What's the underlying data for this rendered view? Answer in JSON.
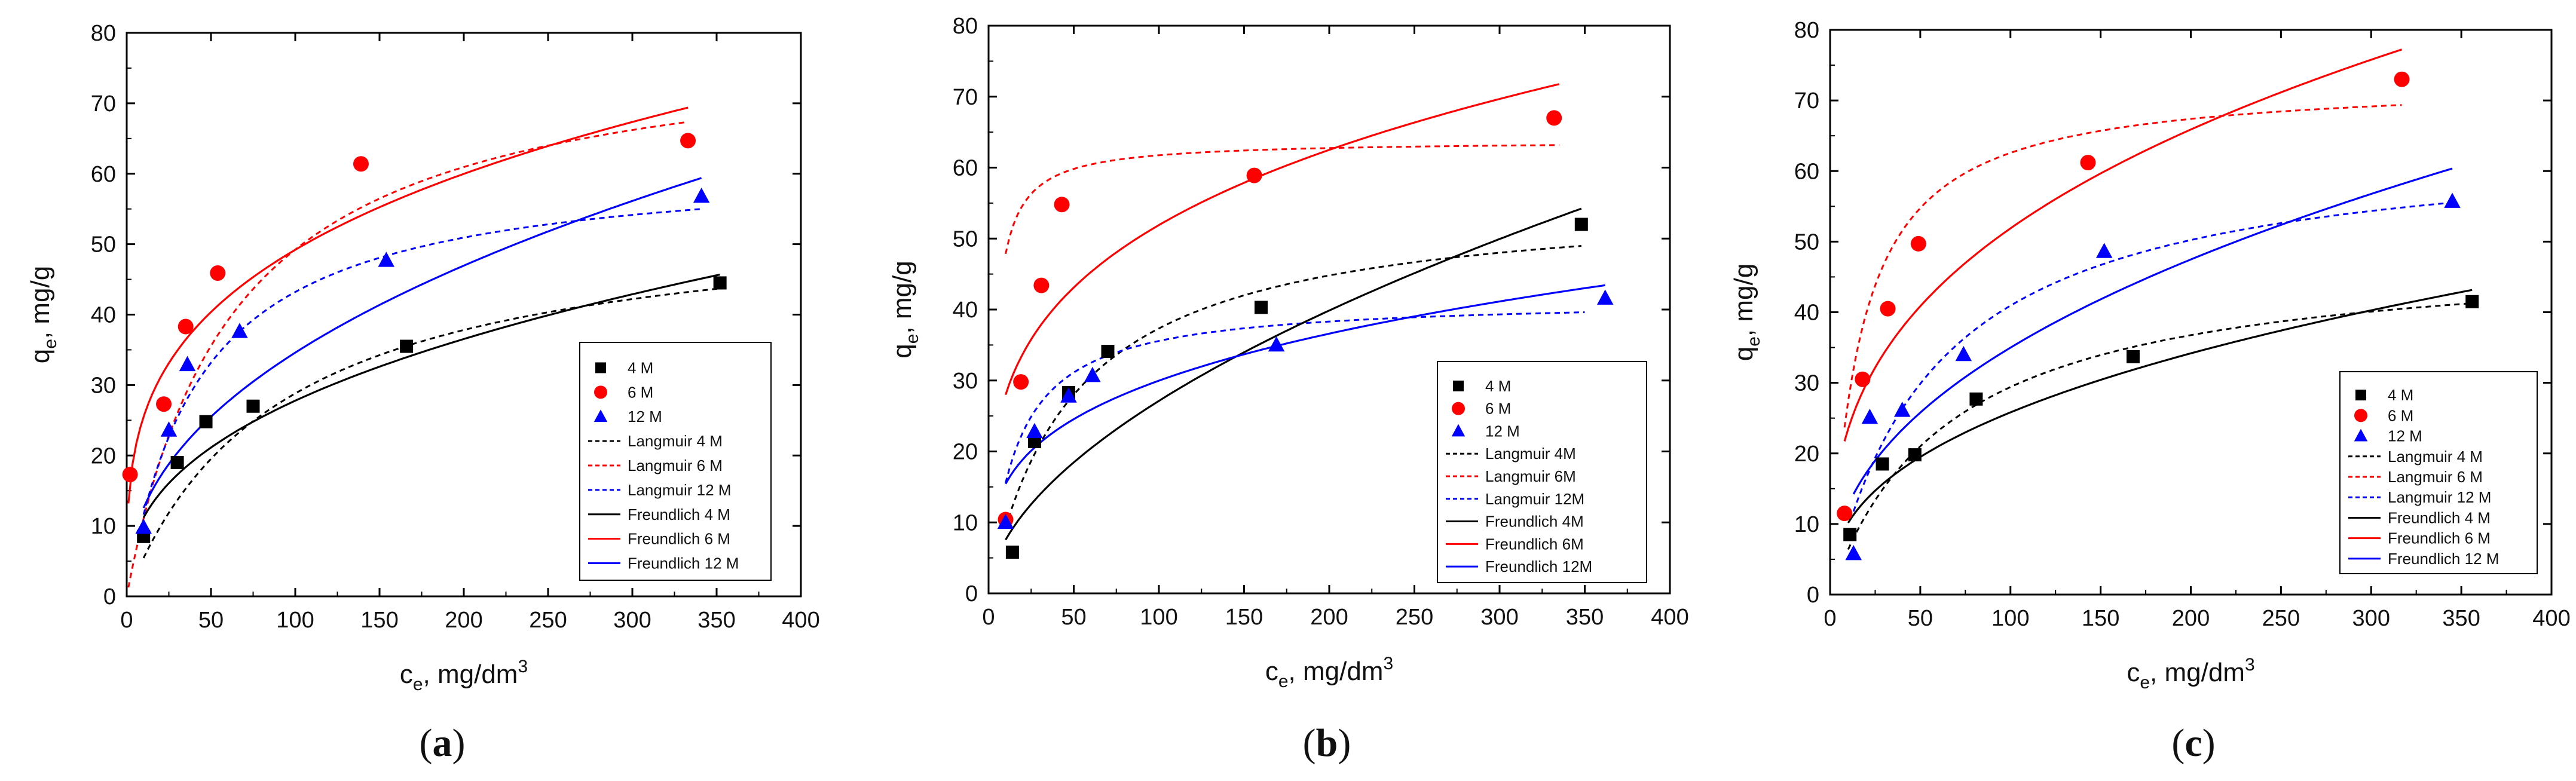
{
  "colors": {
    "s4": "#000000",
    "s6": "#ff0000",
    "s12": "#0000ff"
  },
  "chart_data": [
    {
      "type": "scatter",
      "panel_label": "a",
      "ylabel_main": "q",
      "ylabel_sub": "e",
      "ylabel_unit": ", mg/g",
      "xlabel_main": "c",
      "xlabel_sub": "e",
      "xlabel_unit": ", mg/dm",
      "xlabel_sup": "3",
      "xlim": [
        0,
        400
      ],
      "ylim": [
        0,
        80
      ],
      "xticks": [
        "0",
        "50",
        "100",
        "150",
        "200",
        "250",
        "300",
        "350",
        "400"
      ],
      "yticks": [
        "0",
        "10",
        "20",
        "30",
        "40",
        "50",
        "60",
        "70",
        "80"
      ],
      "legend_position": "right-middle",
      "series": [
        {
          "name": "4 M",
          "marker": "square",
          "color": "#000000",
          "x": [
            10,
            30,
            47,
            75,
            166,
            352
          ],
          "y": [
            8.5,
            19,
            24.8,
            27,
            35.5,
            44.5
          ]
        },
        {
          "name": "6 M",
          "marker": "circle",
          "color": "#ff0000",
          "x": [
            2,
            22,
            35,
            54,
            139,
            333
          ],
          "y": [
            17.3,
            27.3,
            38.3,
            45.9,
            61.4,
            64.7
          ]
        },
        {
          "name": "12 M",
          "marker": "triangle",
          "color": "#0000ff",
          "x": [
            10,
            25,
            36,
            67,
            154,
            341
          ],
          "y": [
            9.8,
            23.6,
            32.9,
            37.6,
            47.7,
            56.8
          ]
        }
      ],
      "fits": [
        {
          "name": "Langmuir 4 M",
          "model": "langmuir",
          "dash": true,
          "color": "#000000",
          "qm": 55,
          "b": 0.011,
          "xmin": 10,
          "xmax": 352
        },
        {
          "name": "Langmuir 6 M",
          "model": "langmuir",
          "dash": true,
          "color": "#ff0000",
          "qm": 80,
          "b": 0.016,
          "xmin": 1,
          "xmax": 333
        },
        {
          "name": "Langmuir 12 M",
          "model": "langmuir",
          "dash": true,
          "color": "#0000ff",
          "qm": 62,
          "b": 0.023,
          "xmin": 10,
          "xmax": 341
        },
        {
          "name": "Freundlich 4 M",
          "model": "freundlich",
          "dash": false,
          "color": "#000000",
          "k": 4.5,
          "n": 2.53,
          "xmin": 10,
          "xmax": 352
        },
        {
          "name": "Freundlich 6 M",
          "model": "freundlich",
          "dash": false,
          "color": "#ff0000",
          "k": 13.2,
          "n": 3.5,
          "xmin": 1,
          "xmax": 333
        },
        {
          "name": "Freundlich 12 M",
          "model": "freundlich",
          "dash": false,
          "color": "#0000ff",
          "k": 4.55,
          "n": 2.27,
          "xmin": 10,
          "xmax": 341
        }
      ]
    },
    {
      "type": "scatter",
      "panel_label": "b",
      "ylabel_main": "q",
      "ylabel_sub": "e",
      "ylabel_unit": ", mg/g",
      "xlabel_main": "c",
      "xlabel_sub": "e",
      "xlabel_unit": ", mg/dm",
      "xlabel_sup": "3",
      "xlim": [
        0,
        400
      ],
      "ylim": [
        0,
        80
      ],
      "xticks": [
        "0",
        "50",
        "100",
        "150",
        "200",
        "250",
        "300",
        "350",
        "400"
      ],
      "yticks": [
        "0",
        "10",
        "20",
        "30",
        "40",
        "50",
        "60",
        "70",
        "80"
      ],
      "legend_position": "right-middle",
      "series": [
        {
          "name": "4 M",
          "marker": "square",
          "color": "#000000",
          "x": [
            14,
            27,
            47,
            70,
            160,
            348
          ],
          "y": [
            5.8,
            21.4,
            28.3,
            34.1,
            40.3,
            52
          ]
        },
        {
          "name": "6 M",
          "marker": "circle",
          "color": "#ff0000",
          "x": [
            10,
            19,
            31,
            43,
            156,
            332
          ],
          "y": [
            10.4,
            29.8,
            43.4,
            54.8,
            58.9,
            67
          ]
        },
        {
          "name": "12 M",
          "marker": "triangle",
          "color": "#0000ff",
          "x": [
            10,
            27,
            47,
            61,
            169,
            362
          ],
          "y": [
            10,
            22.8,
            27.8,
            30.7,
            35,
            41.6
          ]
        }
      ],
      "fits": [
        {
          "name": "Langmuir 4M",
          "model": "langmuir",
          "dash": true,
          "color": "#000000",
          "qm": 56,
          "b": 0.02,
          "xmin": 10,
          "xmax": 348
        },
        {
          "name": "Langmuir 6M",
          "model": "langmuir",
          "dash": true,
          "color": "#ff0000",
          "qm": 63.8,
          "b": 0.3,
          "xmin": 10,
          "xmax": 335
        },
        {
          "name": "Langmuir 12M",
          "model": "langmuir",
          "dash": true,
          "color": "#0000ff",
          "qm": 41.5,
          "b": 0.06,
          "xmin": 10,
          "xmax": 350
        },
        {
          "name": "Freundlich 4M",
          "model": "freundlich",
          "dash": false,
          "color": "#000000",
          "k": 2.1,
          "n": 1.8,
          "xmin": 10,
          "xmax": 348
        },
        {
          "name": "Freundlich 6M",
          "model": "freundlich",
          "dash": false,
          "color": "#ff0000",
          "k": 15.1,
          "n": 3.73,
          "xmin": 10,
          "xmax": 335
        },
        {
          "name": "Freundlich 12M",
          "model": "freundlich",
          "dash": false,
          "color": "#0000ff",
          "k": 7.95,
          "n": 3.47,
          "xmin": 10,
          "xmax": 362
        }
      ]
    },
    {
      "type": "scatter",
      "panel_label": "c",
      "ylabel_main": "q",
      "ylabel_sub": "e",
      "ylabel_unit": ", mg/g",
      "xlabel_main": "c",
      "xlabel_sub": "e",
      "xlabel_unit": ", mg/dm",
      "xlabel_sup": "3",
      "xlim": [
        0,
        400
      ],
      "ylim": [
        0,
        80
      ],
      "xticks": [
        "0",
        "50",
        "100",
        "150",
        "200",
        "250",
        "300",
        "350",
        "400"
      ],
      "yticks": [
        "0",
        "10",
        "20",
        "30",
        "40",
        "50",
        "60",
        "70",
        "80"
      ],
      "legend_position": "right-middle",
      "series": [
        {
          "name": "4 M",
          "marker": "square",
          "color": "#000000",
          "x": [
            11,
            29,
            47,
            81,
            168,
            356
          ],
          "y": [
            8.5,
            18.5,
            19.8,
            27.7,
            33.7,
            41.5
          ]
        },
        {
          "name": "6 M",
          "marker": "circle",
          "color": "#ff0000",
          "x": [
            8,
            18,
            32,
            49,
            143,
            317
          ],
          "y": [
            11.5,
            30.5,
            40.5,
            49.7,
            61.2,
            73
          ]
        },
        {
          "name": "12 M",
          "marker": "triangle",
          "color": "#0000ff",
          "x": [
            13,
            22,
            40,
            74,
            152,
            345
          ],
          "y": [
            5.8,
            25.1,
            26.1,
            34,
            48.6,
            55.7
          ]
        }
      ],
      "fits": [
        {
          "name": "Langmuir 4 M",
          "model": "langmuir",
          "dash": true,
          "color": "#000000",
          "qm": 49,
          "b": 0.015,
          "xmin": 10,
          "xmax": 356
        },
        {
          "name": "Langmuir 6 M",
          "model": "langmuir",
          "dash": true,
          "color": "#ff0000",
          "qm": 73,
          "b": 0.06,
          "xmin": 8,
          "xmax": 317
        },
        {
          "name": "Langmuir 12 M",
          "model": "langmuir",
          "dash": true,
          "color": "#0000ff",
          "qm": 65,
          "b": 0.017,
          "xmin": 13,
          "xmax": 345
        },
        {
          "name": "Freundlich 4 M",
          "model": "freundlich",
          "dash": false,
          "color": "#000000",
          "k": 4.0,
          "n": 2.47,
          "xmin": 10,
          "xmax": 356
        },
        {
          "name": "Freundlich 6 M",
          "model": "freundlich",
          "dash": false,
          "color": "#ff0000",
          "k": 10.6,
          "n": 2.9,
          "xmin": 8,
          "xmax": 317
        },
        {
          "name": "Freundlich 12 M",
          "model": "freundlich",
          "dash": false,
          "color": "#0000ff",
          "k": 4.6,
          "n": 2.27,
          "xmin": 13,
          "xmax": 345
        }
      ]
    }
  ]
}
